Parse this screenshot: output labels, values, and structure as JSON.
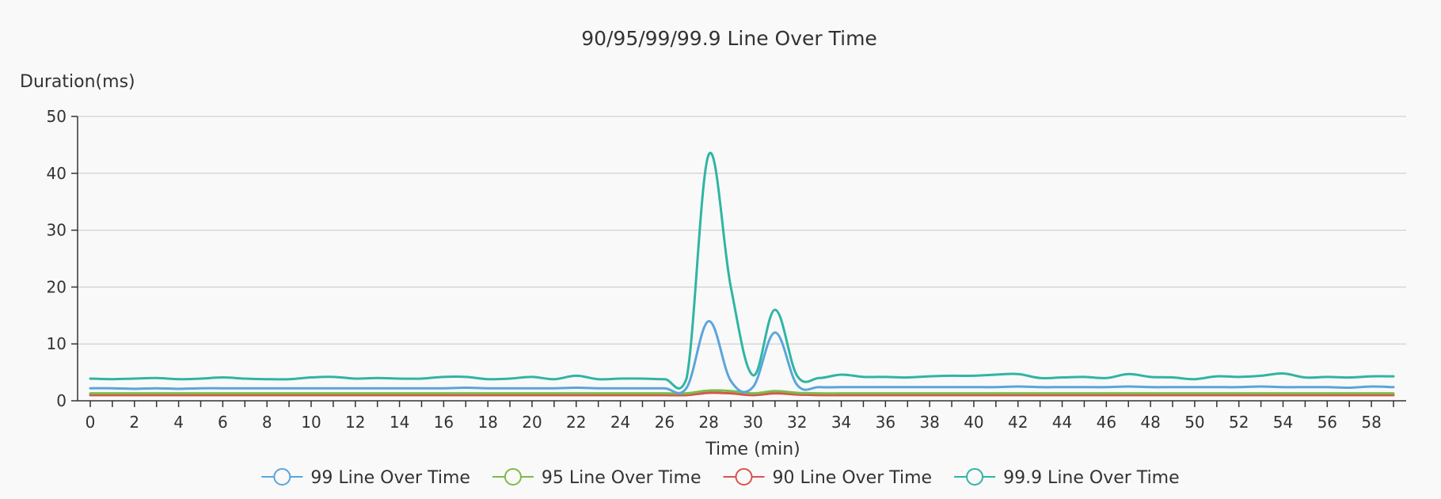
{
  "chart_data": {
    "type": "line",
    "title": "90/95/99/99.9 Line Over Time",
    "xlabel": "Time (min)",
    "ylabel": "Duration(ms)",
    "xlim": [
      0,
      59
    ],
    "ylim": [
      0,
      50
    ],
    "x_ticks": [
      0,
      2,
      4,
      6,
      8,
      10,
      12,
      14,
      16,
      18,
      20,
      22,
      24,
      26,
      28,
      30,
      32,
      34,
      36,
      38,
      40,
      42,
      44,
      46,
      48,
      50,
      52,
      54,
      56,
      58
    ],
    "y_ticks": [
      0,
      10,
      20,
      30,
      40,
      50
    ],
    "grid": true,
    "legend_position": "bottom",
    "x": [
      0,
      1,
      2,
      3,
      4,
      5,
      6,
      7,
      8,
      9,
      10,
      11,
      12,
      13,
      14,
      15,
      16,
      17,
      18,
      19,
      20,
      21,
      22,
      23,
      24,
      25,
      26,
      27,
      28,
      29,
      30,
      31,
      32,
      33,
      34,
      35,
      36,
      37,
      38,
      39,
      40,
      41,
      42,
      43,
      44,
      45,
      46,
      47,
      48,
      49,
      50,
      51,
      52,
      53,
      54,
      55,
      56,
      57,
      58,
      59
    ],
    "series": [
      {
        "name": "99 Line Over Time",
        "color": "#5aa5dc",
        "values": [
          2.2,
          2.2,
          2.1,
          2.2,
          2.1,
          2.2,
          2.2,
          2.2,
          2.2,
          2.2,
          2.2,
          2.2,
          2.2,
          2.2,
          2.2,
          2.2,
          2.2,
          2.3,
          2.2,
          2.2,
          2.2,
          2.2,
          2.3,
          2.2,
          2.2,
          2.2,
          2.2,
          2.3,
          14.0,
          3.5,
          2.4,
          12.0,
          2.8,
          2.4,
          2.4,
          2.4,
          2.4,
          2.4,
          2.4,
          2.4,
          2.4,
          2.4,
          2.5,
          2.4,
          2.4,
          2.4,
          2.4,
          2.5,
          2.4,
          2.4,
          2.4,
          2.4,
          2.4,
          2.5,
          2.4,
          2.4,
          2.4,
          2.3,
          2.5,
          2.4
        ]
      },
      {
        "name": "95 Line Over Time",
        "color": "#7cbb4a",
        "values": [
          1.3,
          1.3,
          1.3,
          1.3,
          1.3,
          1.3,
          1.3,
          1.3,
          1.3,
          1.3,
          1.3,
          1.3,
          1.3,
          1.3,
          1.3,
          1.3,
          1.3,
          1.3,
          1.3,
          1.3,
          1.3,
          1.3,
          1.3,
          1.3,
          1.3,
          1.3,
          1.3,
          1.3,
          1.8,
          1.7,
          1.3,
          1.7,
          1.4,
          1.3,
          1.3,
          1.3,
          1.3,
          1.3,
          1.3,
          1.3,
          1.3,
          1.3,
          1.3,
          1.3,
          1.3,
          1.3,
          1.3,
          1.3,
          1.3,
          1.3,
          1.3,
          1.3,
          1.3,
          1.3,
          1.3,
          1.3,
          1.3,
          1.3,
          1.3,
          1.3
        ]
      },
      {
        "name": "90 Line Over Time",
        "color": "#d9534f",
        "values": [
          1.0,
          1.0,
          1.0,
          1.0,
          1.0,
          1.0,
          1.0,
          1.0,
          1.0,
          1.0,
          1.0,
          1.0,
          1.0,
          1.0,
          1.0,
          1.0,
          1.0,
          1.0,
          1.0,
          1.0,
          1.0,
          1.0,
          1.0,
          1.0,
          1.0,
          1.0,
          1.0,
          1.0,
          1.4,
          1.3,
          1.0,
          1.3,
          1.1,
          1.0,
          1.0,
          1.0,
          1.0,
          1.0,
          1.0,
          1.0,
          1.0,
          1.0,
          1.0,
          1.0,
          1.0,
          1.0,
          1.0,
          1.0,
          1.0,
          1.0,
          1.0,
          1.0,
          1.0,
          1.0,
          1.0,
          1.0,
          1.0,
          1.0,
          1.0,
          1.0
        ]
      },
      {
        "name": "99.9 Line Over Time",
        "color": "#2fb5a2",
        "values": [
          3.9,
          3.8,
          3.9,
          4.0,
          3.8,
          3.9,
          4.1,
          3.9,
          3.8,
          3.8,
          4.1,
          4.2,
          3.9,
          4.0,
          3.9,
          3.9,
          4.2,
          4.2,
          3.8,
          3.9,
          4.2,
          3.8,
          4.4,
          3.8,
          3.9,
          3.9,
          3.8,
          4.0,
          43.3,
          20.0,
          4.5,
          16.0,
          4.4,
          4.0,
          4.6,
          4.2,
          4.2,
          4.1,
          4.3,
          4.4,
          4.4,
          4.6,
          4.7,
          4.0,
          4.1,
          4.2,
          4.0,
          4.7,
          4.2,
          4.1,
          3.8,
          4.3,
          4.2,
          4.4,
          4.8,
          4.1,
          4.2,
          4.1,
          4.3,
          4.3
        ]
      }
    ]
  }
}
